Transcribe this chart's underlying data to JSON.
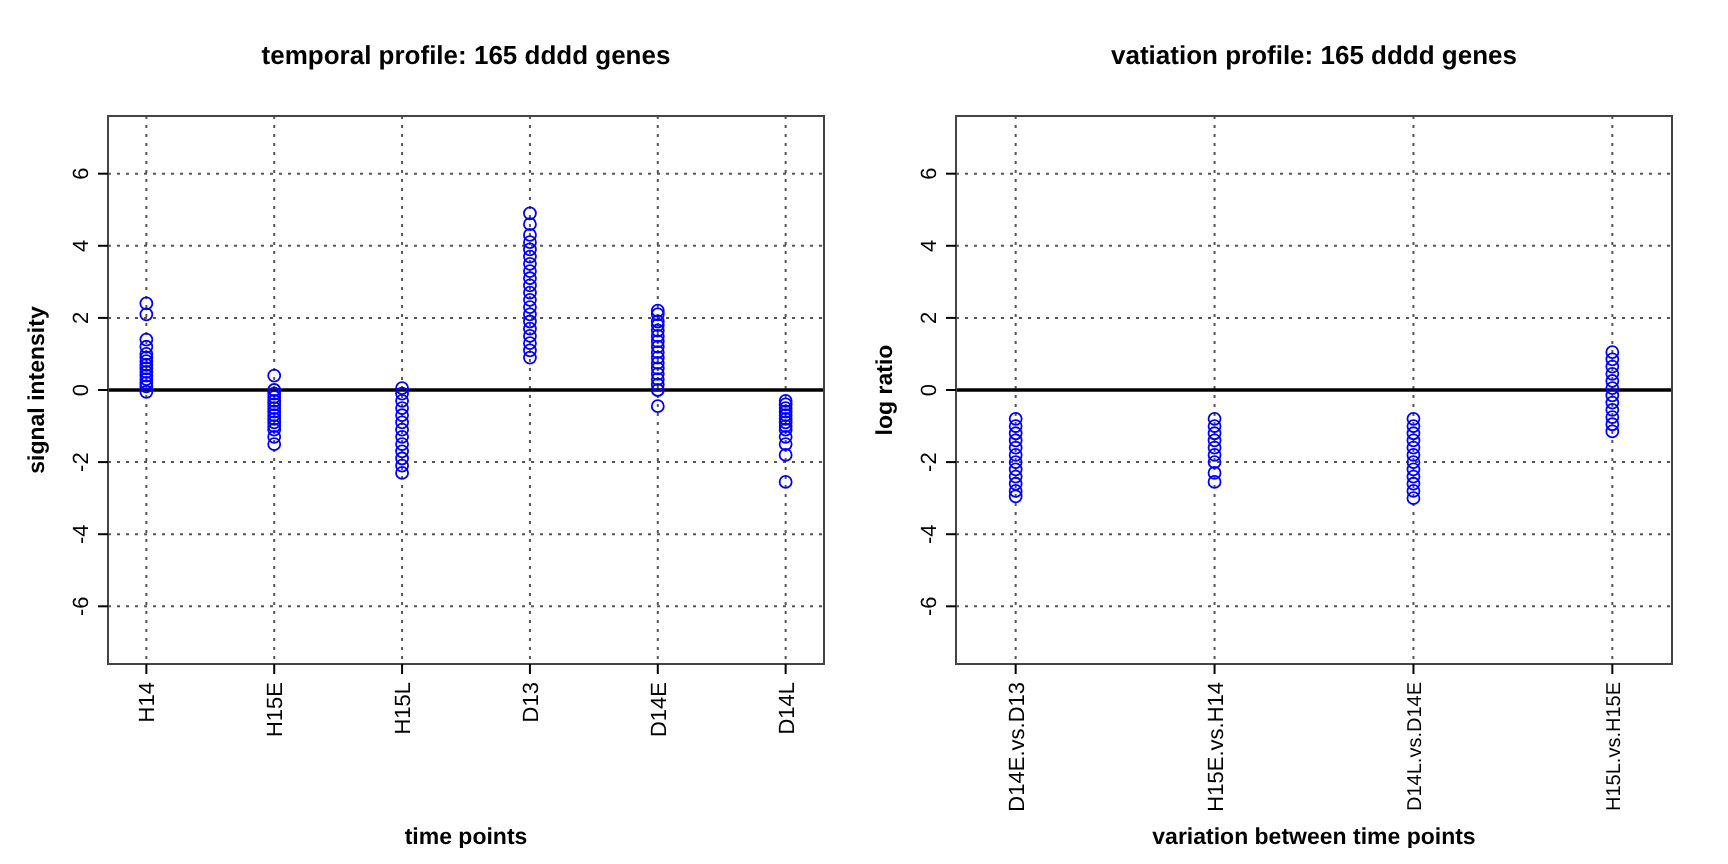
{
  "chart_data": [
    {
      "type": "scatter",
      "title": "temporal profile: 165 dddd genes",
      "xlabel": "time points",
      "ylabel": "signal intensity",
      "categories": [
        "H14",
        "H15E",
        "H15L",
        "D13",
        "D14E",
        "D14L"
      ],
      "ylim": [
        -7.6,
        7.6
      ],
      "yticks": [
        -6,
        -4,
        -2,
        0,
        2,
        4,
        6
      ],
      "grid": true,
      "marker": "circle",
      "ref_lines": [
        {
          "axis": "y",
          "value": 0
        }
      ],
      "series": [
        {
          "color": "#0000ff",
          "x": [
            "H14",
            "H14",
            "H14",
            "H14",
            "H14",
            "H14",
            "H14",
            "H14",
            "H14",
            "H14",
            "H14",
            "H14",
            "H14",
            "H14",
            "H14",
            "H15E",
            "H15E",
            "H15E",
            "H15E",
            "H15E",
            "H15E",
            "H15E",
            "H15E",
            "H15E",
            "H15E",
            "H15E",
            "H15E",
            "H15E",
            "H15E",
            "H15E",
            "H15L",
            "H15L",
            "H15L",
            "H15L",
            "H15L",
            "H15L",
            "H15L",
            "H15L",
            "H15L",
            "H15L",
            "H15L",
            "H15L",
            "H15L",
            "D13",
            "D13",
            "D13",
            "D13",
            "D13",
            "D13",
            "D13",
            "D13",
            "D13",
            "D13",
            "D13",
            "D13",
            "D13",
            "D13",
            "D13",
            "D13",
            "D13",
            "D13",
            "D13",
            "D13",
            "D14E",
            "D14E",
            "D14E",
            "D14E",
            "D14E",
            "D14E",
            "D14E",
            "D14E",
            "D14E",
            "D14E",
            "D14E",
            "D14E",
            "D14E",
            "D14E",
            "D14E",
            "D14E",
            "D14E",
            "D14L",
            "D14L",
            "D14L",
            "D14L",
            "D14L",
            "D14L",
            "D14L",
            "D14L",
            "D14L",
            "D14L",
            "D14L",
            "D14L",
            "D14L"
          ],
          "values": [
            -0.05,
            0.1,
            0.2,
            0.3,
            0.4,
            0.5,
            0.6,
            0.7,
            0.8,
            0.9,
            1.0,
            1.2,
            1.4,
            2.1,
            2.4,
            0.4,
            0,
            -0.1,
            -0.2,
            -0.3,
            -0.4,
            -0.5,
            -0.6,
            -0.7,
            -0.8,
            -0.9,
            -1.0,
            -1.1,
            -1.3,
            -1.5,
            0.05,
            -0.1,
            -0.3,
            -0.5,
            -0.7,
            -0.9,
            -1.1,
            -1.3,
            -1.5,
            -1.7,
            -1.9,
            -2.1,
            -2.3,
            0.9,
            1.1,
            1.3,
            1.5,
            1.7,
            1.9,
            2.1,
            2.3,
            2.5,
            2.7,
            2.9,
            3.1,
            3.3,
            3.5,
            3.7,
            3.9,
            4.1,
            4.3,
            4.6,
            4.9,
            -0.45,
            0,
            0.15,
            0.3,
            0.45,
            0.6,
            0.75,
            0.9,
            1.05,
            1.2,
            1.35,
            1.5,
            1.65,
            1.8,
            1.9,
            2.1,
            2.2,
            -0.3,
            -0.4,
            -0.5,
            -0.6,
            -0.7,
            -0.8,
            -0.9,
            -1.0,
            -1.1,
            -1.3,
            -1.5,
            -1.8,
            -2.55
          ]
        }
      ]
    },
    {
      "type": "scatter",
      "title": "vatiation profile: 165 dddd genes",
      "xlabel": "variation between time points",
      "ylabel": "log ratio",
      "categories": [
        "D14E.vs.D13",
        "H15E.vs.H14",
        "D14L.vs.D14E",
        "H15L.vs.H15E"
      ],
      "ylim": [
        -7.6,
        7.6
      ],
      "yticks": [
        -6,
        -4,
        -2,
        0,
        2,
        4,
        6
      ],
      "grid": true,
      "marker": "circle",
      "ref_lines": [
        {
          "axis": "y",
          "value": 0
        }
      ],
      "series": [
        {
          "color": "#0000ff",
          "x": [
            "D14E.vs.D13",
            "D14E.vs.D13",
            "D14E.vs.D13",
            "D14E.vs.D13",
            "D14E.vs.D13",
            "D14E.vs.D13",
            "D14E.vs.D13",
            "D14E.vs.D13",
            "D14E.vs.D13",
            "D14E.vs.D13",
            "D14E.vs.D13",
            "D14E.vs.D13",
            "H15E.vs.H14",
            "H15E.vs.H14",
            "H15E.vs.H14",
            "H15E.vs.H14",
            "H15E.vs.H14",
            "H15E.vs.H14",
            "H15E.vs.H14",
            "H15E.vs.H14",
            "H15E.vs.H14",
            "D14L.vs.D14E",
            "D14L.vs.D14E",
            "D14L.vs.D14E",
            "D14L.vs.D14E",
            "D14L.vs.D14E",
            "D14L.vs.D14E",
            "D14L.vs.D14E",
            "D14L.vs.D14E",
            "D14L.vs.D14E",
            "D14L.vs.D14E",
            "D14L.vs.D14E",
            "D14L.vs.D14E",
            "H15L.vs.H15E",
            "H15L.vs.H15E",
            "H15L.vs.H15E",
            "H15L.vs.H15E",
            "H15L.vs.H15E",
            "H15L.vs.H15E",
            "H15L.vs.H15E",
            "H15L.vs.H15E",
            "H15L.vs.H15E",
            "H15L.vs.H15E",
            "H15L.vs.H15E",
            "H15L.vs.H15E"
          ],
          "values": [
            -0.8,
            -1.0,
            -1.2,
            -1.4,
            -1.6,
            -1.8,
            -2.0,
            -2.2,
            -2.4,
            -2.6,
            -2.8,
            -2.95,
            -0.8,
            -1.0,
            -1.2,
            -1.4,
            -1.6,
            -1.8,
            -2.0,
            -2.3,
            -2.55,
            -0.8,
            -1.0,
            -1.2,
            -1.4,
            -1.6,
            -1.8,
            -2.0,
            -2.2,
            -2.4,
            -2.6,
            -2.8,
            -3.0,
            1.05,
            0.85,
            0.65,
            0.45,
            0.25,
            0.05,
            -0.15,
            -0.35,
            -0.55,
            -0.75,
            -0.95,
            -1.15
          ]
        }
      ]
    }
  ]
}
